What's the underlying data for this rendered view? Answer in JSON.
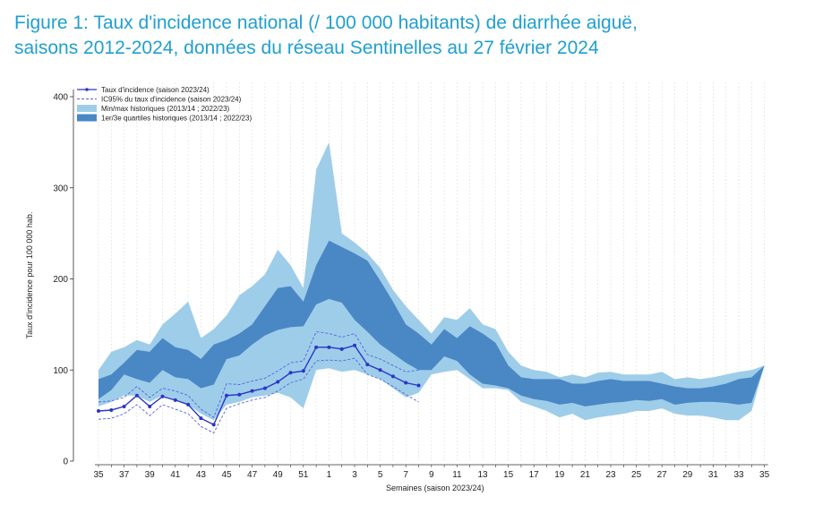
{
  "figure": {
    "title_line1": "Figure 1: Taux d'incidence national (/ 100 000 habitants) de diarrhée aiguë,",
    "title_line2": "saisons 2012-2024, données du réseau Sentinelles au 27 février 2024"
  },
  "chart_data": {
    "type": "area",
    "title": "Figure 1: Taux d'incidence national (/ 100 000 habitants) de diarrhée aiguë, saisons 2012-2024, données du réseau Sentinelles au 27 février 2024",
    "xlabel": "Semaines (saison 2023/24)",
    "ylabel": "Taux d'incidence pour 100 000 hab.",
    "ylim": [
      0,
      410
    ],
    "yticks": [
      0,
      100,
      200,
      300,
      400
    ],
    "grid": "vertical",
    "legend_position": "top-left",
    "weeks": [
      35,
      36,
      37,
      38,
      39,
      40,
      41,
      42,
      43,
      44,
      45,
      46,
      47,
      48,
      49,
      50,
      51,
      52,
      1,
      2,
      3,
      4,
      5,
      6,
      7,
      8,
      9,
      10,
      11,
      12,
      13,
      14,
      15,
      16,
      17,
      18,
      19,
      20,
      21,
      22,
      23,
      24,
      25,
      26,
      27,
      28,
      29,
      30,
      31,
      32,
      33,
      34,
      35
    ],
    "xtick_labels": [
      "35",
      "37",
      "39",
      "41",
      "43",
      "45",
      "47",
      "49",
      "51",
      "1",
      "3",
      "5",
      "7",
      "9",
      "11",
      "13",
      "15",
      "17",
      "19",
      "21",
      "23",
      "25",
      "27",
      "29",
      "31",
      "33",
      "35"
    ],
    "colors": {
      "line": "#2b35c8",
      "ci": "#5561e0",
      "minmax": "#9ecde9",
      "quartiles": "#4a87c5"
    },
    "series": [
      {
        "name": "Taux d'incidence (saison 2023/24)",
        "kind": "line",
        "values": [
          55,
          56,
          60,
          72,
          60,
          71,
          67,
          62,
          47,
          40,
          72,
          73,
          77,
          80,
          87,
          97,
          99,
          125,
          125,
          123,
          127,
          106,
          100,
          93,
          86,
          83
        ]
      },
      {
        "name": "IC95% du taux d'incidence (saison 2023/24)",
        "kind": "ci",
        "lower": [
          46,
          47,
          52,
          62,
          50,
          62,
          57,
          52,
          38,
          31,
          58,
          63,
          67,
          70,
          77,
          86,
          90,
          110,
          111,
          110,
          113,
          95,
          90,
          82,
          73,
          65
        ],
        "upper": [
          65,
          66,
          70,
          82,
          70,
          80,
          77,
          72,
          57,
          48,
          85,
          84,
          88,
          91,
          99,
          108,
          110,
          142,
          140,
          136,
          140,
          117,
          112,
          105,
          98,
          100
        ]
      },
      {
        "name": "Min/max historiques (2013/14 ; 2022/23)",
        "kind": "band",
        "lower": [
          60,
          65,
          72,
          72,
          65,
          72,
          68,
          62,
          52,
          45,
          62,
          65,
          70,
          72,
          75,
          70,
          58,
          100,
          102,
          98,
          100,
          95,
          90,
          80,
          70,
          75,
          95,
          98,
          100,
          90,
          80,
          80,
          78,
          65,
          60,
          55,
          48,
          52,
          45,
          48,
          50,
          52,
          55,
          55,
          58,
          52,
          50,
          50,
          48,
          45,
          45,
          55,
          105
        ],
        "upper": [
          100,
          120,
          125,
          133,
          128,
          150,
          162,
          175,
          135,
          145,
          160,
          182,
          192,
          205,
          232,
          215,
          190,
          320,
          350,
          250,
          240,
          228,
          212,
          188,
          170,
          155,
          140,
          158,
          155,
          168,
          150,
          145,
          120,
          105,
          100,
          98,
          92,
          95,
          92,
          97,
          98,
          95,
          95,
          95,
          98,
          90,
          92,
          90,
          92,
          95,
          98,
          100,
          105
        ]
      },
      {
        "name": "1er/3e quartiles historiques (2013/14 ; 2022/23)",
        "kind": "band",
        "lower": [
          68,
          78,
          95,
          90,
          86,
          100,
          92,
          90,
          80,
          84,
          112,
          116,
          128,
          138,
          144,
          147,
          148,
          172,
          178,
          174,
          155,
          142,
          128,
          118,
          108,
          100,
          100,
          115,
          110,
          95,
          85,
          83,
          80,
          72,
          68,
          66,
          62,
          64,
          60,
          62,
          64,
          65,
          67,
          66,
          68,
          62,
          64,
          65,
          65,
          64,
          62,
          64,
          105
        ],
        "upper": [
          90,
          95,
          108,
          122,
          120,
          135,
          125,
          122,
          112,
          128,
          133,
          140,
          150,
          170,
          190,
          192,
          175,
          215,
          242,
          235,
          228,
          220,
          198,
          175,
          150,
          140,
          128,
          145,
          135,
          148,
          140,
          130,
          105,
          92,
          90,
          90,
          90,
          85,
          85,
          88,
          90,
          88,
          88,
          88,
          85,
          82,
          80,
          80,
          82,
          85,
          90,
          92,
          105
        ]
      }
    ]
  }
}
